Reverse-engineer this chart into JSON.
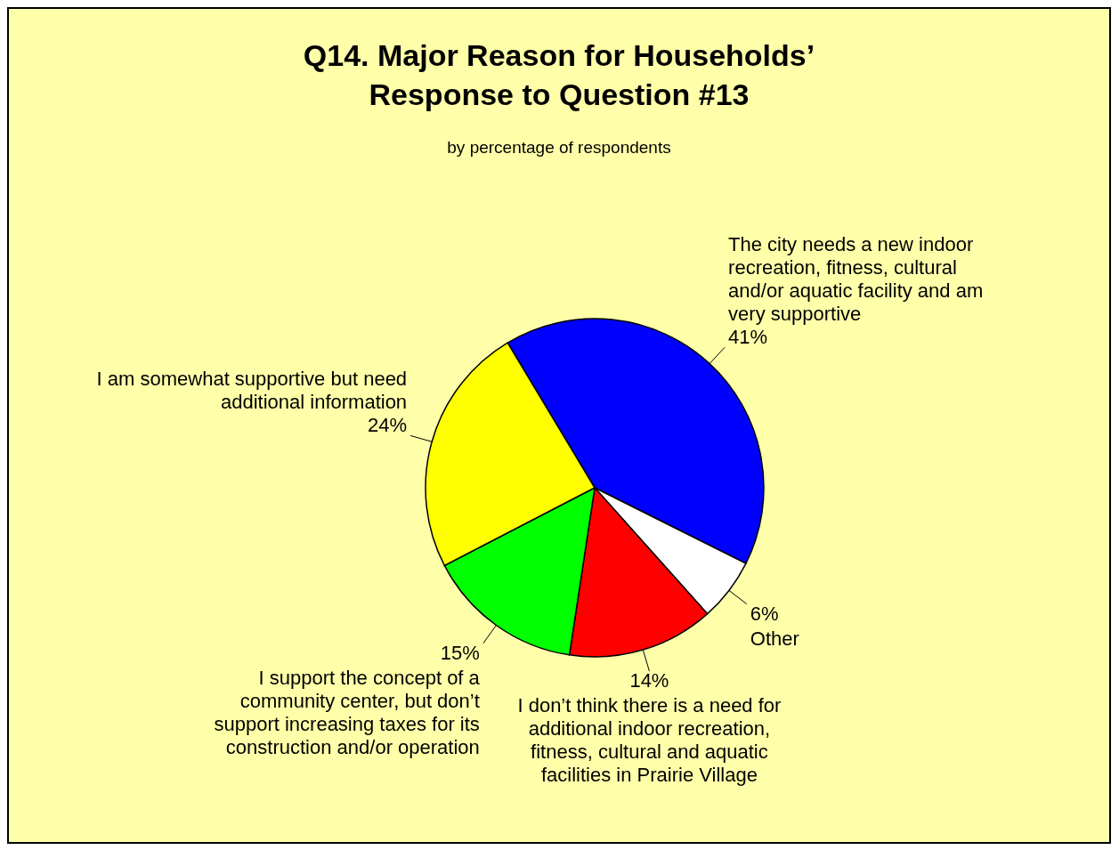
{
  "chart_data": {
    "type": "pie",
    "title": "Q14.  Major Reason for Households’ Response to Question #13",
    "subtitle": "by percentage of respondents",
    "categories": [
      "The city needs a new indoor recreation, fitness, cultural and/or aquatic facility and am very supportive",
      "Other",
      "I don’t think there is a need for additional indoor recreation, fitness, cultural and aquatic facilities in Prairie Village",
      "I support the concept of a community center, but don’t support increasing taxes for its construction and/or operation",
      "I am somewhat supportive but need additional information"
    ],
    "values": [
      41,
      6,
      14,
      15,
      24
    ],
    "value_labels": [
      "41%",
      "6%",
      "14%",
      "15%",
      "24%"
    ],
    "colors": [
      "#0000ff",
      "#ffffff",
      "#ff0000",
      "#00ff00",
      "#ffff00"
    ]
  }
}
